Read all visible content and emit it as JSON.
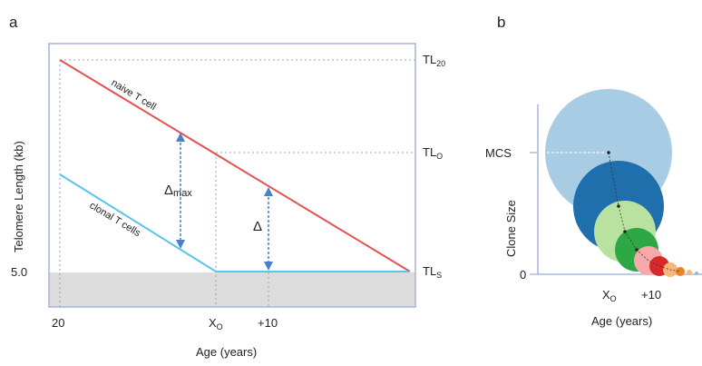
{
  "panel_a": {
    "label": "a",
    "ylabel": "Telomere Length (kb)",
    "xlabel": "Age (years)",
    "xticks": {
      "start": "20",
      "xo_main": "X",
      "xo_sub": "O",
      "plus10": "+10"
    },
    "ytick": "5.0",
    "right_labels": {
      "tl20_main": "TL",
      "tl20_sub": "20",
      "tlo_main": "TL",
      "tlo_sub": "O",
      "tls_main": "TL",
      "tls_sub": "S"
    },
    "naive_label": "naive T cell",
    "clonal_label": "clonal T cells",
    "delta_max_main": "Δ",
    "delta_max_sub": "max",
    "delta": "Δ",
    "colors": {
      "naive": "#e85050",
      "clonal": "#5bc4ec",
      "arrow": "#4a7fd0",
      "shade": "#dcdcdc",
      "frame": "#a8b8dc"
    }
  },
  "panel_b": {
    "label": "b",
    "ylabel": "Clone Size",
    "xlabel": "Age (years)",
    "ytick_top": "MCS",
    "ytick_zero": "0",
    "xticks": {
      "xo_main": "X",
      "xo_sub": "O",
      "plus10": "+10"
    },
    "circle_colors": [
      "#a8cce4",
      "#1f6fad",
      "#b9e2a0",
      "#2ea845",
      "#f7a8a8",
      "#d42a2a",
      "#f5b878",
      "#ee8020"
    ]
  }
}
